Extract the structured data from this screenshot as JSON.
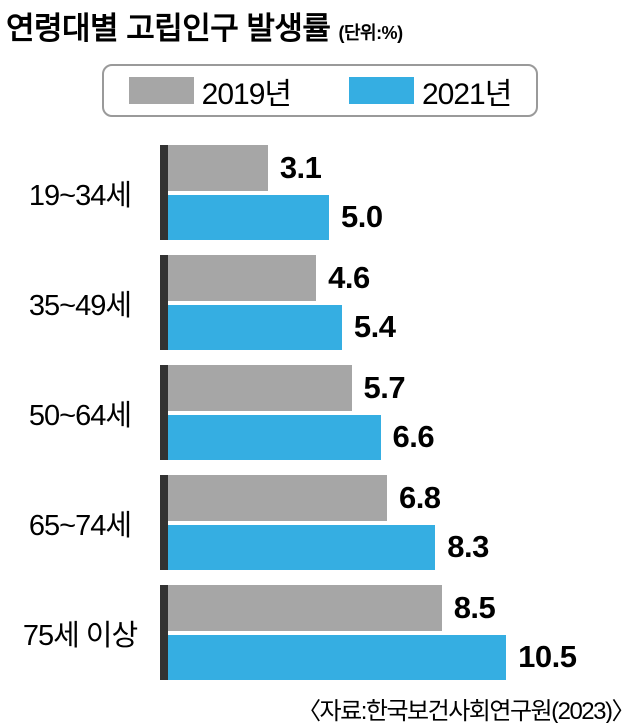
{
  "chart_data": {
    "type": "bar",
    "orientation": "horizontal",
    "title": "연령대별 고립인구 발생률",
    "unit_label": "(단위:%)",
    "categories": [
      "19~34세",
      "35~49세",
      "50~64세",
      "65~74세",
      "75세 이상"
    ],
    "series": [
      {
        "name": "2019년",
        "color": "#a6a6a6",
        "values": [
          3.1,
          4.6,
          5.7,
          6.8,
          8.5
        ],
        "value_labels": [
          "3.1",
          "4.6",
          "5.7",
          "6.8",
          "8.5"
        ]
      },
      {
        "name": "2021년",
        "color": "#35aee2",
        "values": [
          5.0,
          5.4,
          6.6,
          8.3,
          10.5
        ],
        "value_labels": [
          "5.0",
          "5.4",
          "6.6",
          "8.3",
          "10.5"
        ]
      }
    ],
    "value_axis_range": [
      0,
      11
    ],
    "grid": false,
    "legend_position": "top",
    "axis_bar_color": "#323232",
    "source": "〈자료:한국보건사회연구원(2023)〉"
  }
}
